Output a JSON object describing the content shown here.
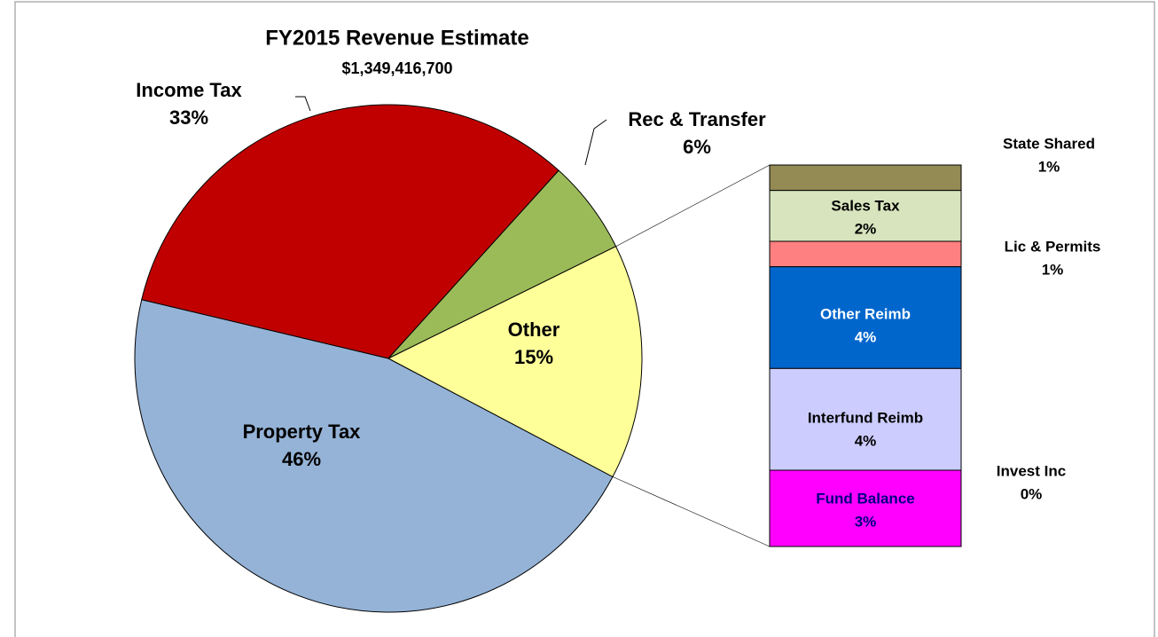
{
  "chart_data": {
    "type": "pie-of-bar",
    "title": "FY2015 Revenue Estimate",
    "subtitle": "$1,349,416,700",
    "categories": [
      "Property Tax",
      "Income Tax",
      "Rec & Transfer",
      "Other"
    ],
    "values": [
      46,
      33,
      6,
      15
    ],
    "value_labels": [
      "46%",
      "33%",
      "6%",
      "15%"
    ],
    "colors": [
      "#95b3d7",
      "#c00000",
      "#9bbb59",
      "#ffff99"
    ],
    "breakdown": {
      "categories": [
        "State Shared",
        "Sales Tax",
        "Lic & Permits",
        "Other Reimb",
        "Interfund Reimb",
        "Invest Inc",
        "Fund Balance"
      ],
      "values": [
        1,
        2,
        1,
        4,
        4,
        0,
        3
      ],
      "value_labels": [
        "1%",
        "2%",
        "1%",
        "4%",
        "4%",
        "0%",
        "3%"
      ],
      "colors": [
        "#948a54",
        "#d7e4bd",
        "#ff8080",
        "#0066cc",
        "#ccccff",
        null,
        "#ff00ff"
      ]
    }
  }
}
